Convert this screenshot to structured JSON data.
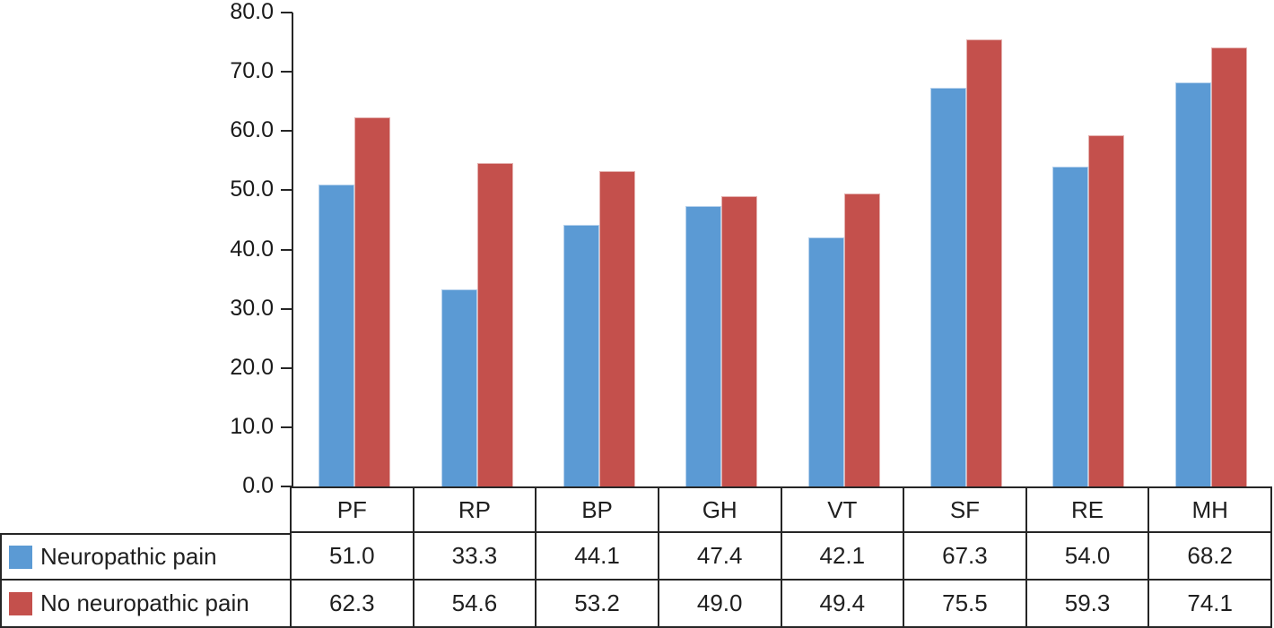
{
  "chart_data": {
    "type": "bar",
    "title": "",
    "xlabel": "",
    "ylabel": "",
    "categories": [
      "PF",
      "RP",
      "BP",
      "GH",
      "VT",
      "SF",
      "RE",
      "MH"
    ],
    "series": [
      {
        "name": "Neuropathic pain",
        "color": "#5B9AD4",
        "values": [
          51.0,
          33.3,
          44.1,
          47.4,
          42.1,
          67.3,
          54.0,
          68.2
        ]
      },
      {
        "name": "No neuropathic pain",
        "color": "#C4504C",
        "values": [
          62.3,
          54.6,
          53.2,
          49.0,
          49.4,
          75.5,
          59.3,
          74.1
        ]
      }
    ],
    "ylim": [
      0,
      80
    ],
    "ytick_step": 10,
    "ytick_labels": [
      "0.0",
      "10.0",
      "20.0",
      "30.0",
      "40.0",
      "50.0",
      "60.0",
      "70.0",
      "80.0"
    ],
    "grid": false,
    "legend_position": "table-left",
    "value_format_decimals": 1,
    "axis_color": "#262626"
  }
}
